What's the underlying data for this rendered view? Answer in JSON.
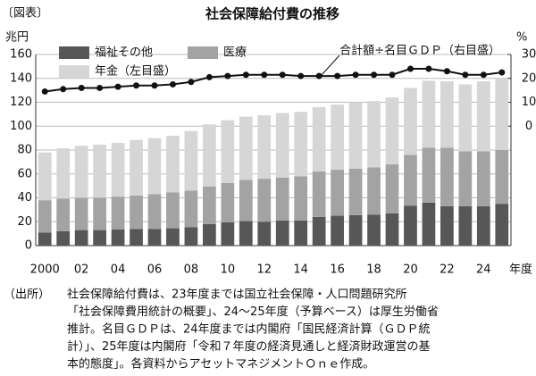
{
  "label": "〔図表〕",
  "chart_data": {
    "type": "bar",
    "stacked": true,
    "title": "社会保障給付費の推移",
    "y_unit": "兆円",
    "y2_unit": "%",
    "x_label": "年度",
    "categories": [
      "2000",
      null,
      "02",
      null,
      "04",
      null,
      "06",
      null,
      "08",
      null,
      "10",
      null,
      "12",
      null,
      "14",
      null,
      "16",
      null,
      "18",
      null,
      "20",
      null,
      "22",
      null,
      "24",
      null
    ],
    "series": [
      {
        "name": "福祉その他",
        "color": "#575757",
        "values": [
          11,
          12,
          13,
          13,
          13.5,
          14,
          14,
          14.5,
          15.5,
          18,
          19.5,
          20.5,
          20,
          21,
          21,
          24,
          25,
          25.5,
          26,
          27,
          33.5,
          36,
          33,
          33,
          33,
          35
        ]
      },
      {
        "name": "医療",
        "color": "#a3a3a3",
        "values": [
          27,
          27.5,
          27,
          27,
          27.5,
          28,
          29,
          30,
          30.5,
          31.5,
          33,
          34.5,
          36,
          36,
          37,
          38,
          38.5,
          39,
          39.5,
          41,
          42.5,
          46,
          49,
          46,
          46,
          45
        ]
      },
      {
        "name": "年金（左目盛）",
        "color": "#d6d6d6",
        "values": [
          40,
          42,
          43.5,
          44.5,
          45,
          46.5,
          47,
          47.5,
          50,
          52,
          52.5,
          53,
          53,
          54,
          54,
          54,
          54.5,
          55.5,
          55.5,
          56,
          56,
          56,
          55.5,
          56,
          58.5,
          60
        ]
      },
      {
        "name": "合計額÷名目ＧＤＰ（右目盛）",
        "type": "line",
        "axis": "y2",
        "color": "#111111",
        "values": [
          14.5,
          15.5,
          16,
          16,
          16.5,
          17,
          17,
          17.5,
          18.5,
          20.5,
          21,
          21.5,
          21.5,
          21.5,
          21,
          21,
          21,
          21.5,
          21.5,
          21.5,
          24,
          24,
          23,
          21.5,
          21.5,
          22.5
        ]
      }
    ],
    "ylim": [
      0,
      160
    ],
    "yticks": [
      0,
      20,
      40,
      60,
      80,
      100,
      120,
      140,
      160
    ],
    "y2lim": [
      -50,
      30
    ],
    "y2ticks": [
      0,
      10,
      20,
      30
    ],
    "grid": true
  },
  "source": {
    "label": "（出所）",
    "lines": [
      "社会保障給付費は、23年度までは国立社会保障・人口問題研究所",
      "「社会保障費用統計の概要」、24～25年度（予算ベース）は厚生労働省",
      "推計。名目ＧＤＰは、24年度までは内閣府「国民経済計算（ＧＤＰ統",
      "計）」、25年度は内閣府「令和７年度の経済見通しと経済財政運営の基",
      "本的態度」。各資料からアセットマネジメントＯｎｅ作成。"
    ]
  }
}
